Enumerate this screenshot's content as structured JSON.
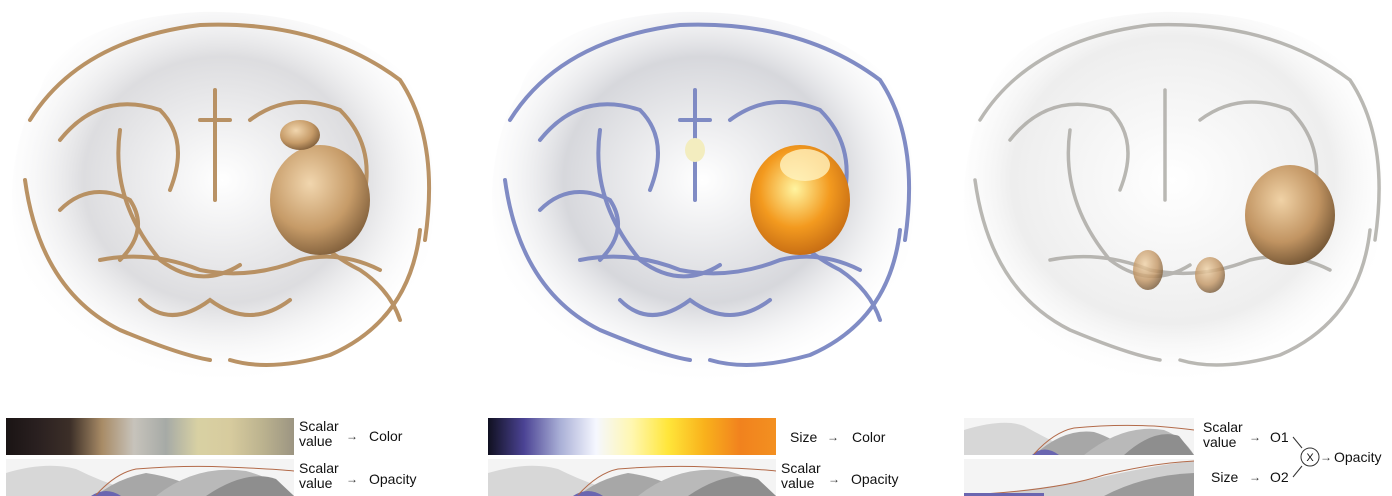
{
  "panels": [
    {
      "id": "panel-1",
      "color_mapping": {
        "source": "Scalar\nvalue",
        "target": "Color",
        "gradient": [
          "#1a1414",
          "#2a2020",
          "#3c2f28",
          "#a88b66",
          "#c7c3bb",
          "#a6aaa6",
          "#d8d1a3",
          "#d7cb9e",
          "#bcb38f",
          "#9c9582"
        ]
      },
      "opacity_mapping": {
        "source": "Scalar\nvalue",
        "target": "Opacity"
      },
      "render_tint": "#c9a57a"
    },
    {
      "id": "panel-2",
      "color_mapping": {
        "source": "Size",
        "target": "Color",
        "gradient": [
          "#101020",
          "#4b4394",
          "#a9afd6",
          "#f5f7ff",
          "#fff7b0",
          "#ffe63a",
          "#f9b21c",
          "#f1821e",
          "#f39020"
        ]
      },
      "opacity_mapping": {
        "source": "Scalar\nvalue",
        "target": "Opacity"
      },
      "render_tint": "#7f8cc4"
    },
    {
      "id": "panel-3",
      "opacity_mappings": [
        {
          "source": "Scalar\nvalue",
          "target": "O1"
        },
        {
          "source": "Size",
          "target": "O2"
        }
      ],
      "combine_symbol": "X",
      "combined_target": "Opacity",
      "render_tint": "#9a9890"
    }
  ]
}
